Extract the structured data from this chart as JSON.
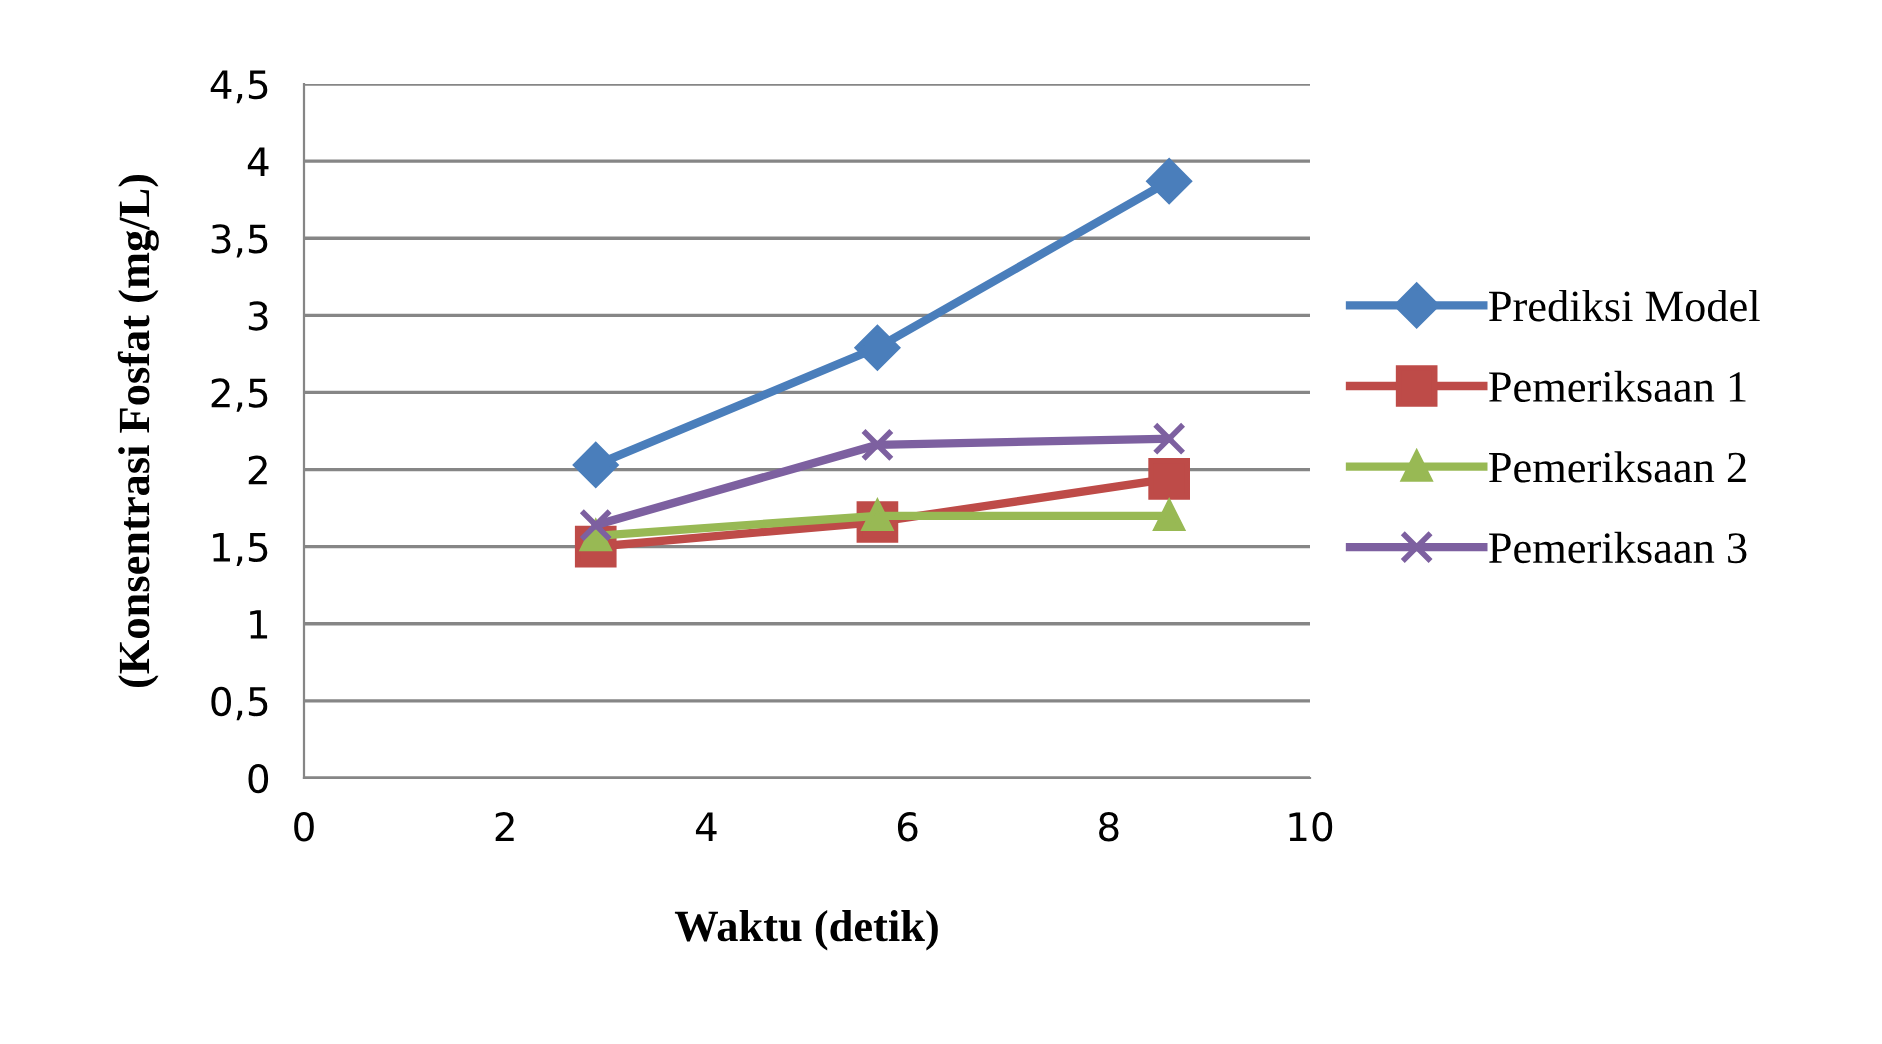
{
  "chart_data": {
    "type": "line",
    "xlabel": "Waktu (detik)",
    "ylabel": "(Konsentrasi Fosfat (mg/L)",
    "xlim": [
      0,
      10
    ],
    "xticks": [
      0,
      2,
      4,
      6,
      8,
      10
    ],
    "ylim": [
      0,
      4.5
    ],
    "yticks": [
      {
        "value": 0,
        "label": "0"
      },
      {
        "value": 0.5,
        "label": "0,5"
      },
      {
        "value": 1,
        "label": "1"
      },
      {
        "value": 1.5,
        "label": "1,5"
      },
      {
        "value": 2,
        "label": "2"
      },
      {
        "value": 2.5,
        "label": "2,5"
      },
      {
        "value": 3,
        "label": "3"
      },
      {
        "value": 3.5,
        "label": "3,5"
      },
      {
        "value": 4,
        "label": "4"
      },
      {
        "value": 4.5,
        "label": "4,5"
      }
    ],
    "grid": "y",
    "legend": "right",
    "line_style": "solid",
    "series": [
      {
        "name": "Prediksi Model",
        "color": "#4a7ebb",
        "marker": "diamond",
        "x": [
          2.9,
          5.7,
          8.6
        ],
        "values": [
          2.03,
          2.79,
          3.87
        ]
      },
      {
        "name": "Pemeriksaan 1",
        "color": "#be4b48",
        "marker": "square",
        "x": [
          2.9,
          5.7,
          8.6
        ],
        "values": [
          1.5,
          1.66,
          1.94
        ]
      },
      {
        "name": "Pemeriksaan 2",
        "color": "#98b954",
        "marker": "triangle",
        "x": [
          2.9,
          5.7,
          8.6
        ],
        "values": [
          1.57,
          1.7,
          1.7
        ]
      },
      {
        "name": "Pemeriksaan 3",
        "color": "#7d60a0",
        "marker": "cross",
        "x": [
          2.9,
          5.7,
          8.6
        ],
        "values": [
          1.64,
          2.16,
          2.2
        ]
      }
    ]
  }
}
